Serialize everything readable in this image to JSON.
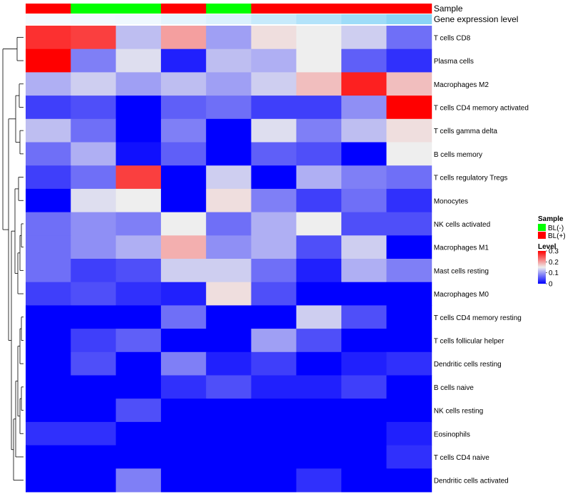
{
  "chart_data": {
    "type": "heatmap",
    "annotations": {
      "sample": {
        "label": "Sample",
        "values": [
          "BL(+)",
          "BL(-)",
          "BL(-)",
          "BL(+)",
          "BL(-)",
          "BL(+)",
          "BL(+)",
          "BL(+)",
          "BL(+)"
        ]
      },
      "gene_expression": {
        "label": "Gene expression level",
        "values": [
          0.02,
          0.04,
          0.05,
          0.12,
          0.18,
          0.3,
          0.42,
          0.55,
          0.68
        ]
      }
    },
    "rows": [
      "T cells CD8",
      "Plasma cells",
      "Macrophages M2",
      "T cells CD4 memory activated",
      "T cells gamma delta",
      "B cells memory",
      "T cells regulatory  Tregs",
      "Monocytes",
      "NK cells activated",
      "Macrophages M1",
      "Mast cells resting",
      "Macrophages M0",
      "T cells CD4 memory resting",
      "T cells follicular helper",
      "Dendritic cells resting",
      "B cells naive",
      "NK cells resting",
      "Eosinophils",
      "T cells CD4 naive",
      "Dendritic cells activated"
    ],
    "values": [
      [
        0.27,
        0.26,
        0.12,
        0.2,
        0.1,
        0.16,
        0.15,
        0.13,
        0.07
      ],
      [
        0.3,
        0.08,
        0.14,
        0.02,
        0.12,
        0.11,
        0.15,
        0.06,
        0.03
      ],
      [
        0.11,
        0.13,
        0.1,
        0.12,
        0.1,
        0.13,
        0.18,
        0.28,
        0.18
      ],
      [
        0.04,
        0.05,
        0.0,
        0.06,
        0.07,
        0.04,
        0.04,
        0.09,
        0.3
      ],
      [
        0.12,
        0.07,
        0.0,
        0.08,
        0.0,
        0.14,
        0.08,
        0.12,
        0.16
      ],
      [
        0.07,
        0.11,
        0.01,
        0.06,
        0.0,
        0.06,
        0.05,
        0.0,
        0.15
      ],
      [
        0.04,
        0.07,
        0.26,
        0.0,
        0.13,
        0.0,
        0.11,
        0.08,
        0.07
      ],
      [
        0.0,
        0.14,
        0.15,
        0.0,
        0.16,
        0.08,
        0.04,
        0.07,
        0.03
      ],
      [
        0.07,
        0.09,
        0.08,
        0.15,
        0.07,
        0.11,
        0.15,
        0.05,
        0.05
      ],
      [
        0.07,
        0.09,
        0.11,
        0.19,
        0.09,
        0.11,
        0.05,
        0.13,
        0.0
      ],
      [
        0.07,
        0.04,
        0.05,
        0.13,
        0.13,
        0.07,
        0.02,
        0.11,
        0.08
      ],
      [
        0.04,
        0.05,
        0.03,
        0.02,
        0.16,
        0.05,
        0.0,
        0.0,
        0.0
      ],
      [
        0.0,
        0.0,
        0.0,
        0.07,
        0.0,
        0.0,
        0.13,
        0.05,
        0.0
      ],
      [
        0.0,
        0.04,
        0.06,
        0.0,
        0.0,
        0.1,
        0.05,
        0.0,
        0.0
      ],
      [
        0.0,
        0.05,
        0.0,
        0.08,
        0.02,
        0.04,
        0.0,
        0.02,
        0.03
      ],
      [
        0.0,
        0.0,
        0.0,
        0.03,
        0.05,
        0.02,
        0.02,
        0.04,
        0.0
      ],
      [
        0.0,
        0.0,
        0.05,
        0.0,
        0.0,
        0.0,
        0.0,
        0.0,
        0.0
      ],
      [
        0.03,
        0.03,
        0.0,
        0.0,
        0.0,
        0.0,
        0.0,
        0.0,
        0.02
      ],
      [
        0.0,
        0.0,
        0.0,
        0.0,
        0.0,
        0.0,
        0.0,
        0.0,
        0.03
      ],
      [
        0.0,
        0.0,
        0.08,
        0.0,
        0.0,
        0.0,
        0.03,
        0.0,
        0.0
      ]
    ],
    "color_scale": {
      "low": "#0000ff",
      "mid": "#eeeeee",
      "high": "#ff0000",
      "min": 0,
      "mid_value": 0.15,
      "max": 0.3
    },
    "annotation_colors": {
      "BL(-)": "#00ff00",
      "BL(+)": "#ff0000",
      "expr_low": "#f7fbff",
      "expr_high": "#56c2f2"
    },
    "legend": {
      "sample_title": "Sample",
      "sample_items": [
        "BL(-)",
        "BL(+)"
      ],
      "level_title": "Level",
      "level_ticks": [
        0.3,
        0.2,
        0.1,
        0
      ]
    },
    "dendrogram": "row-clustering",
    "grid": false
  }
}
